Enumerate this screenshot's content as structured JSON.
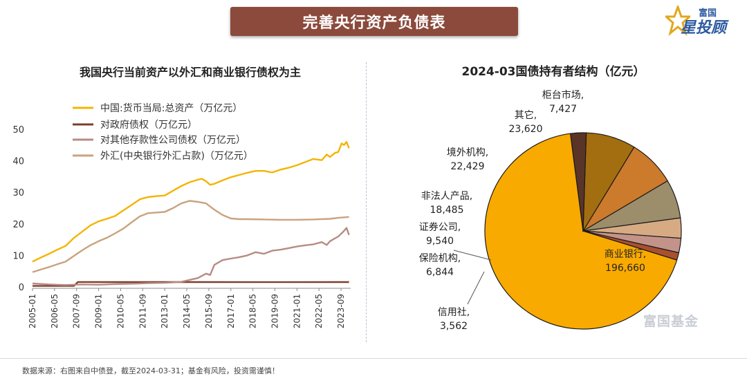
{
  "header": {
    "title": "完善央行资产负债表"
  },
  "brand": {
    "logo_top": "富国",
    "logo_bottom": "星投顾",
    "watermark": "富国基金"
  },
  "footer": {
    "note": "数据来源：右图来自中债登，截至2024-03-31；基金有风险，投资需谨慎！"
  },
  "colors": {
    "gold": "#f4b400",
    "brown": "#7b3e2d",
    "mauve": "#b68b82",
    "tan": "#c9a27e"
  },
  "chart_data": [
    {
      "type": "line",
      "title": "我国央行当前资产以外汇和商业银行债权为主",
      "ylim": [
        0,
        50
      ],
      "yticks": [
        0,
        10,
        20,
        30,
        40,
        50
      ],
      "xlim": [
        2005.0,
        2024.25
      ],
      "xticks": [
        "2005-01",
        "2006-05",
        "2007-09",
        "2009-01",
        "2010-05",
        "2011-09",
        "2013-01",
        "2014-05",
        "2015-09",
        "2017-01",
        "2018-05",
        "2019-09",
        "2021-01",
        "2022-05",
        "2023-09"
      ],
      "legend_position": "top-left",
      "series": [
        {
          "name": "中国:货币当局:总资产（万亿元）",
          "color": "#f4b400",
          "points": [
            [
              2005.0,
              8.0
            ],
            [
              2005.5,
              9.3
            ],
            [
              2006.0,
              10.5
            ],
            [
              2006.5,
              11.8
            ],
            [
              2007.0,
              13.0
            ],
            [
              2007.5,
              15.5
            ],
            [
              2008.0,
              17.5
            ],
            [
              2008.5,
              19.5
            ],
            [
              2009.0,
              20.8
            ],
            [
              2009.5,
              21.6
            ],
            [
              2010.0,
              22.5
            ],
            [
              2010.5,
              24.3
            ],
            [
              2011.0,
              26.0
            ],
            [
              2011.5,
              27.8
            ],
            [
              2012.0,
              28.5
            ],
            [
              2012.5,
              28.8
            ],
            [
              2013.0,
              29.0
            ],
            [
              2013.5,
              30.5
            ],
            [
              2014.0,
              32.0
            ],
            [
              2014.5,
              33.2
            ],
            [
              2015.0,
              34.0
            ],
            [
              2015.25,
              34.3
            ],
            [
              2015.5,
              33.5
            ],
            [
              2015.75,
              32.4
            ],
            [
              2016.0,
              32.7
            ],
            [
              2016.5,
              33.8
            ],
            [
              2017.0,
              34.8
            ],
            [
              2017.5,
              35.5
            ],
            [
              2018.0,
              36.2
            ],
            [
              2018.5,
              36.8
            ],
            [
              2019.0,
              36.8
            ],
            [
              2019.5,
              36.3
            ],
            [
              2020.0,
              37.2
            ],
            [
              2020.5,
              37.8
            ],
            [
              2021.0,
              38.6
            ],
            [
              2021.5,
              39.6
            ],
            [
              2022.0,
              40.6
            ],
            [
              2022.5,
              40.2
            ],
            [
              2022.8,
              42.0
            ],
            [
              2023.0,
              41.2
            ],
            [
              2023.3,
              42.5
            ],
            [
              2023.5,
              42.8
            ],
            [
              2023.7,
              45.5
            ],
            [
              2023.85,
              45.0
            ],
            [
              2024.0,
              46.0
            ],
            [
              2024.15,
              44.0
            ]
          ]
        },
        {
          "name": "对政府债权（万亿元）",
          "color": "#7b3e2d",
          "points": [
            [
              2005.0,
              0.3
            ],
            [
              2007.5,
              0.3
            ],
            [
              2007.75,
              1.55
            ],
            [
              2010.0,
              1.54
            ],
            [
              2015.0,
              1.53
            ],
            [
              2020.0,
              1.52
            ],
            [
              2024.15,
              1.53
            ]
          ]
        },
        {
          "name": "对其他存款性公司债权（万亿元）",
          "color": "#b68b82",
          "points": [
            [
              2005.0,
              1.1
            ],
            [
              2006.0,
              0.8
            ],
            [
              2007.0,
              0.6
            ],
            [
              2008.0,
              0.8
            ],
            [
              2009.0,
              0.7
            ],
            [
              2010.0,
              0.9
            ],
            [
              2011.0,
              1.0
            ],
            [
              2012.0,
              1.2
            ],
            [
              2013.0,
              1.3
            ],
            [
              2014.0,
              1.6
            ],
            [
              2015.0,
              2.8
            ],
            [
              2015.5,
              4.2
            ],
            [
              2015.75,
              3.8
            ],
            [
              2016.0,
              7.0
            ],
            [
              2016.5,
              8.5
            ],
            [
              2017.0,
              9.0
            ],
            [
              2017.5,
              9.4
            ],
            [
              2018.0,
              10.0
            ],
            [
              2018.5,
              11.0
            ],
            [
              2019.0,
              10.5
            ],
            [
              2019.5,
              11.5
            ],
            [
              2020.0,
              11.8
            ],
            [
              2020.5,
              12.3
            ],
            [
              2021.0,
              12.8
            ],
            [
              2021.5,
              13.2
            ],
            [
              2022.0,
              13.5
            ],
            [
              2022.5,
              14.2
            ],
            [
              2022.8,
              13.3
            ],
            [
              2023.0,
              14.5
            ],
            [
              2023.5,
              16.0
            ],
            [
              2023.8,
              17.5
            ],
            [
              2024.0,
              18.7
            ],
            [
              2024.15,
              16.5
            ]
          ]
        },
        {
          "name": "外汇(中央银行外汇占款)（万亿元）",
          "color": "#c9a27e",
          "points": [
            [
              2005.0,
              4.7
            ],
            [
              2005.5,
              5.5
            ],
            [
              2006.0,
              6.3
            ],
            [
              2006.5,
              7.2
            ],
            [
              2007.0,
              8.0
            ],
            [
              2007.5,
              9.8
            ],
            [
              2008.0,
              11.6
            ],
            [
              2008.5,
              13.2
            ],
            [
              2009.0,
              14.5
            ],
            [
              2009.5,
              15.6
            ],
            [
              2010.0,
              17.0
            ],
            [
              2010.5,
              18.5
            ],
            [
              2011.0,
              20.5
            ],
            [
              2011.5,
              22.4
            ],
            [
              2012.0,
              23.4
            ],
            [
              2012.5,
              23.6
            ],
            [
              2013.0,
              23.8
            ],
            [
              2013.5,
              25.0
            ],
            [
              2014.0,
              26.5
            ],
            [
              2014.5,
              27.3
            ],
            [
              2015.0,
              27.0
            ],
            [
              2015.5,
              26.5
            ],
            [
              2016.0,
              24.5
            ],
            [
              2016.5,
              22.8
            ],
            [
              2017.0,
              21.7
            ],
            [
              2017.5,
              21.5
            ],
            [
              2018.0,
              21.5
            ],
            [
              2019.0,
              21.4
            ],
            [
              2020.0,
              21.3
            ],
            [
              2021.0,
              21.3
            ],
            [
              2022.0,
              21.4
            ],
            [
              2023.0,
              21.6
            ],
            [
              2023.5,
              21.9
            ],
            [
              2024.15,
              22.2
            ]
          ]
        }
      ]
    },
    {
      "type": "pie",
      "title": "2024-03国债持有者结构（亿元）",
      "slices": [
        {
          "label": "商业银行,",
          "value": 196660,
          "value_text": "196,660",
          "color": "#f9aa00"
        },
        {
          "label": "信用社,",
          "value": 3562,
          "value_text": "3,562",
          "color": "#a9502f"
        },
        {
          "label": "保险机构,",
          "value": 6844,
          "value_text": "6,844",
          "color": "#c3938a"
        },
        {
          "label": "证券公司,",
          "value": 9540,
          "value_text": "9,540",
          "color": "#d6ab84"
        },
        {
          "label": "非法人产品,",
          "value": 18485,
          "value_text": "18,485",
          "color": "#9c8d6b"
        },
        {
          "label": "境外机构,",
          "value": 22429,
          "value_text": "22,429",
          "color": "#cc7a2c"
        },
        {
          "label": "其它,",
          "value": 23620,
          "value_text": "23,620",
          "color": "#a36e10"
        },
        {
          "label": "柜台市场,",
          "value": 7427,
          "value_text": "7,427",
          "color": "#5a3427"
        }
      ]
    }
  ]
}
